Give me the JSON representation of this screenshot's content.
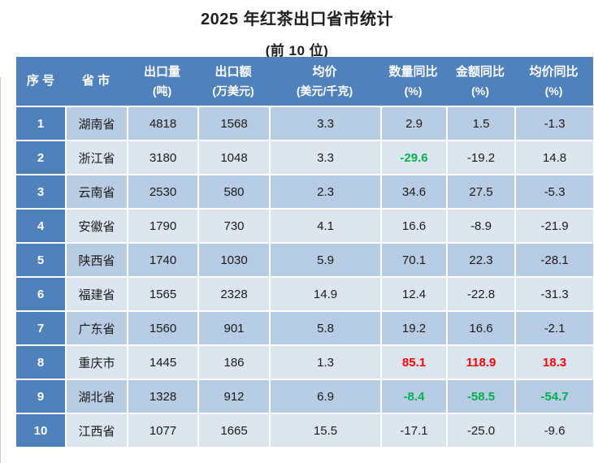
{
  "title": "2025 年红茶出口省市统计",
  "subtitle": "(前 10 位)",
  "colors": {
    "header_bg": "#4f81bd",
    "index_column_bg": "#4f81bd",
    "row_odd_bg": "#b8cce4",
    "row_even_bg": "#dce6f1",
    "header_text": "#ffffff",
    "body_text": "#1a1a1a",
    "highlight_red": "#ff0000",
    "highlight_green": "#00b050"
  },
  "table": {
    "columns": [
      {
        "id": "rank",
        "line1": "序 号",
        "line2": ""
      },
      {
        "id": "province",
        "line1": "省 市",
        "line2": ""
      },
      {
        "id": "volume",
        "line1": "出口量",
        "line2": "(吨)"
      },
      {
        "id": "value",
        "line1": "出口额",
        "line2": "(万美元)"
      },
      {
        "id": "avg_price",
        "line1": "均价",
        "line2": "(美元/千克)"
      },
      {
        "id": "qty_yoy",
        "line1": "数量同比",
        "line2": "(%)"
      },
      {
        "id": "amount_yoy",
        "line1": "金额同比",
        "line2": "(%)"
      },
      {
        "id": "price_yoy",
        "line1": "均价同比",
        "line2": "(%)"
      }
    ],
    "rows": [
      {
        "rank": "1",
        "province": "湖南省",
        "volume": "4818",
        "value": "1568",
        "avg_price": "3.3",
        "qty_yoy": "2.9",
        "amount_yoy": "1.5",
        "price_yoy": "-1.3",
        "yoy_styles": [
          "normal",
          "normal",
          "normal"
        ]
      },
      {
        "rank": "2",
        "province": "浙江省",
        "volume": "3180",
        "value": "1048",
        "avg_price": "3.3",
        "qty_yoy": "-29.6",
        "amount_yoy": "-19.2",
        "price_yoy": "14.8",
        "yoy_styles": [
          "green",
          "normal",
          "normal"
        ]
      },
      {
        "rank": "3",
        "province": "云南省",
        "volume": "2530",
        "value": "580",
        "avg_price": "2.3",
        "qty_yoy": "34.6",
        "amount_yoy": "27.5",
        "price_yoy": "-5.3",
        "yoy_styles": [
          "normal",
          "normal",
          "normal"
        ]
      },
      {
        "rank": "4",
        "province": "安徽省",
        "volume": "1790",
        "value": "730",
        "avg_price": "4.1",
        "qty_yoy": "16.6",
        "amount_yoy": "-8.9",
        "price_yoy": "-21.9",
        "yoy_styles": [
          "normal",
          "normal",
          "normal"
        ]
      },
      {
        "rank": "5",
        "province": "陕西省",
        "volume": "1740",
        "value": "1030",
        "avg_price": "5.9",
        "qty_yoy": "70.1",
        "amount_yoy": "22.3",
        "price_yoy": "-28.1",
        "yoy_styles": [
          "normal",
          "normal",
          "normal"
        ]
      },
      {
        "rank": "6",
        "province": "福建省",
        "volume": "1565",
        "value": "2328",
        "avg_price": "14.9",
        "qty_yoy": "12.4",
        "amount_yoy": "-22.8",
        "price_yoy": "-31.3",
        "yoy_styles": [
          "normal",
          "normal",
          "normal"
        ]
      },
      {
        "rank": "7",
        "province": "广东省",
        "volume": "1560",
        "value": "901",
        "avg_price": "5.8",
        "qty_yoy": "19.2",
        "amount_yoy": "16.6",
        "price_yoy": "-2.1",
        "yoy_styles": [
          "normal",
          "normal",
          "normal"
        ]
      },
      {
        "rank": "8",
        "province": "重庆市",
        "volume": "1445",
        "value": "186",
        "avg_price": "1.3",
        "qty_yoy": "85.1",
        "amount_yoy": "118.9",
        "price_yoy": "18.3",
        "yoy_styles": [
          "red",
          "red",
          "red"
        ]
      },
      {
        "rank": "9",
        "province": "湖北省",
        "volume": "1328",
        "value": "912",
        "avg_price": "6.9",
        "qty_yoy": "-8.4",
        "amount_yoy": "-58.5",
        "price_yoy": "-54.7",
        "yoy_styles": [
          "green",
          "green",
          "green"
        ]
      },
      {
        "rank": "10",
        "province": "江西省",
        "volume": "1077",
        "value": "1665",
        "avg_price": "15.5",
        "qty_yoy": "-17.1",
        "amount_yoy": "-25.0",
        "price_yoy": "-9.6",
        "yoy_styles": [
          "normal",
          "normal",
          "normal"
        ]
      }
    ]
  },
  "chart_data": {
    "type": "table",
    "title": "2025 年红茶出口省市统计",
    "subtitle": "(前 10 位)",
    "columns": [
      "序 号",
      "省 市",
      "出口量 (吨)",
      "出口额 (万美元)",
      "均价 (美元/千克)",
      "数量同比 (%)",
      "金额同比 (%)",
      "均价同比 (%)"
    ],
    "rows": [
      [
        1,
        "湖南省",
        4818,
        1568,
        3.3,
        2.9,
        1.5,
        -1.3
      ],
      [
        2,
        "浙江省",
        3180,
        1048,
        3.3,
        -29.6,
        -19.2,
        14.8
      ],
      [
        3,
        "云南省",
        2530,
        580,
        2.3,
        34.6,
        27.5,
        -5.3
      ],
      [
        4,
        "安徽省",
        1790,
        730,
        4.1,
        16.6,
        -8.9,
        -21.9
      ],
      [
        5,
        "陕西省",
        1740,
        1030,
        5.9,
        70.1,
        22.3,
        -28.1
      ],
      [
        6,
        "福建省",
        1565,
        2328,
        14.9,
        12.4,
        -22.8,
        -31.3
      ],
      [
        7,
        "广东省",
        1560,
        901,
        5.8,
        19.2,
        16.6,
        -2.1
      ],
      [
        8,
        "重庆市",
        1445,
        186,
        1.3,
        85.1,
        118.9,
        18.3
      ],
      [
        9,
        "湖北省",
        1328,
        912,
        6.9,
        -8.4,
        -58.5,
        -54.7
      ],
      [
        10,
        "江西省",
        1077,
        1665,
        15.5,
        -17.1,
        -25.0,
        -9.6
      ]
    ],
    "highlights": {
      "red_bold_cells": [
        [
          "重庆市",
          "数量同比"
        ],
        [
          "重庆市",
          "金额同比"
        ],
        [
          "重庆市",
          "均价同比"
        ]
      ],
      "green_bold_cells": [
        [
          "浙江省",
          "数量同比"
        ],
        [
          "湖北省",
          "数量同比"
        ],
        [
          "湖北省",
          "金额同比"
        ],
        [
          "湖北省",
          "均价同比"
        ]
      ]
    }
  }
}
